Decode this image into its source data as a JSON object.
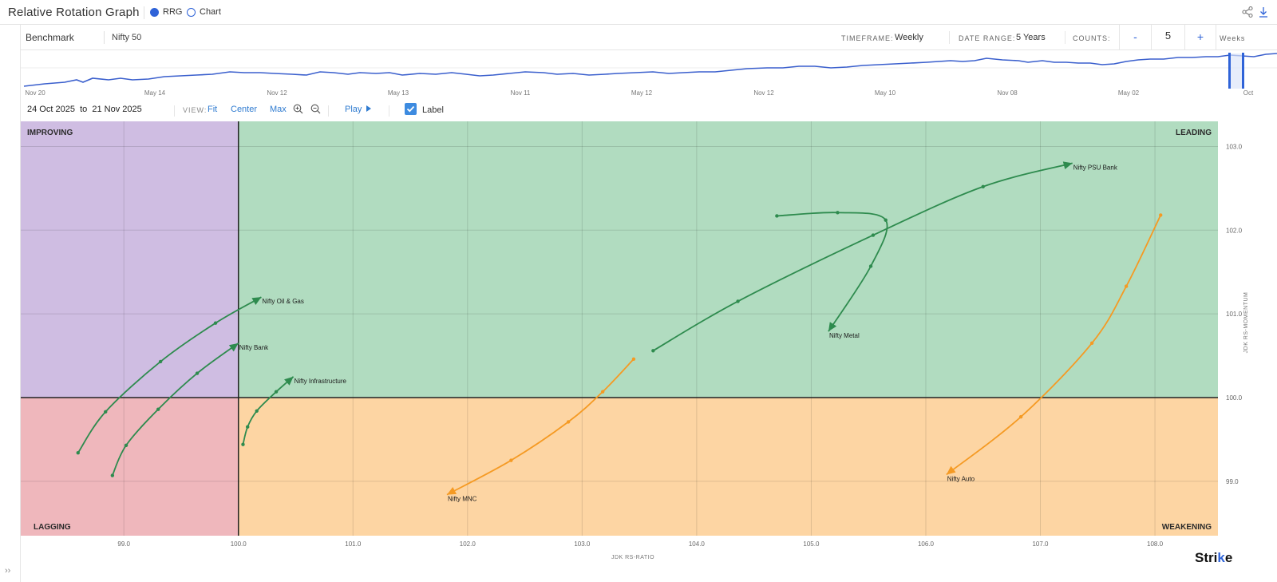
{
  "header": {
    "title": "Relative Rotation Graph",
    "view_modes": [
      {
        "label": "RRG",
        "selected": true
      },
      {
        "label": "Chart",
        "selected": false
      }
    ],
    "icons": [
      "share-icon",
      "download-icon"
    ]
  },
  "controls": {
    "benchmark_label": "Benchmark",
    "benchmark_value": "Nifty 50",
    "timeframe_label": "TIMEFRAME:",
    "timeframe_value": "Weekly",
    "date_range_label": "DATE RANGE:",
    "date_range_value": "5 Years",
    "counts_label": "COUNTS:",
    "counts_minus": "-",
    "counts_value": "5",
    "counts_plus": "+",
    "counts_unit": "Weeks"
  },
  "navigator": {
    "ticks": [
      "Nov 20",
      "May 14",
      "Nov 12",
      "May 13",
      "Nov 11",
      "May 12",
      "Nov 12",
      "May 10",
      "Nov 08",
      "May 02",
      "Oct"
    ],
    "accent": "#2f63d8"
  },
  "view_bar": {
    "date_from": "24 Oct 2025",
    "to_word": "to",
    "date_to": "21 Nov 2025",
    "view_label": "VIEW:",
    "fit": "Fit",
    "center": "Center",
    "max": "Max",
    "play": "Play",
    "label_toggle": "Label",
    "label_checked": true
  },
  "quadrants": {
    "improving": {
      "label": "IMPROVING",
      "color": "#cfbde2"
    },
    "leading": {
      "label": "LEADING",
      "color": "#b1dcc0"
    },
    "lagging": {
      "label": "LAGGING",
      "color": "#efb7bc"
    },
    "weakening": {
      "label": "WEAKENING",
      "color": "#fdd5a3"
    }
  },
  "chart_data": {
    "type": "scatter",
    "title": "Relative Rotation Graph",
    "xlabel": "JDK RS-RATIO",
    "ylabel": "JDK RS-MOMENTUM",
    "xlim": [
      98.1,
      108.55
    ],
    "ylim": [
      98.35,
      103.3
    ],
    "xticks": [
      99.0,
      100.0,
      101.0,
      102.0,
      103.0,
      104.0,
      105.0,
      106.0,
      107.0,
      108.0
    ],
    "yticks": [
      99.0,
      100.0,
      101.0,
      102.0,
      103.0
    ],
    "center": [
      100.0,
      100.0
    ],
    "grid": true,
    "series": [
      {
        "name": "Nifty Oil & Gas",
        "color": "#2e8b4e",
        "points": [
          [
            98.6,
            99.34
          ],
          [
            98.84,
            99.83
          ],
          [
            99.32,
            100.43
          ],
          [
            99.8,
            100.89
          ],
          [
            100.2,
            101.2
          ]
        ]
      },
      {
        "name": "Nifty Bank",
        "color": "#2e8b4e",
        "points": [
          [
            98.9,
            99.07
          ],
          [
            99.02,
            99.43
          ],
          [
            99.3,
            99.86
          ],
          [
            99.64,
            100.29
          ],
          [
            100.0,
            100.65
          ]
        ]
      },
      {
        "name": "Nifty Infrastructure",
        "color": "#2e8b4e",
        "points": [
          [
            100.04,
            99.44
          ],
          [
            100.08,
            99.65
          ],
          [
            100.16,
            99.84
          ],
          [
            100.33,
            100.07
          ],
          [
            100.48,
            100.25
          ]
        ]
      },
      {
        "name": "Nifty PSU Bank",
        "color": "#2e8b4e",
        "points": [
          [
            103.62,
            100.56
          ],
          [
            104.36,
            101.15
          ],
          [
            105.54,
            101.94
          ],
          [
            106.5,
            102.52
          ],
          [
            107.28,
            102.8
          ]
        ]
      },
      {
        "name": "Nifty Metal",
        "color": "#2e8b4e",
        "points": [
          [
            104.7,
            102.17
          ],
          [
            105.23,
            102.21
          ],
          [
            105.65,
            102.12
          ],
          [
            105.52,
            101.57
          ],
          [
            105.15,
            100.79
          ]
        ]
      },
      {
        "name": "Nifty MNC",
        "color": "#f59a23",
        "points": [
          [
            103.45,
            100.46
          ],
          [
            103.18,
            100.07
          ],
          [
            102.88,
            99.71
          ],
          [
            102.38,
            99.25
          ],
          [
            101.82,
            98.84
          ]
        ]
      },
      {
        "name": "Nifty Auto",
        "color": "#f59a23",
        "points": [
          [
            108.05,
            102.18
          ],
          [
            107.75,
            101.33
          ],
          [
            107.45,
            100.65
          ],
          [
            106.83,
            99.77
          ],
          [
            106.18,
            99.08
          ]
        ]
      }
    ]
  },
  "branding": {
    "prefix": "Stri",
    "accent_letter": "k",
    "suffix": "e"
  }
}
